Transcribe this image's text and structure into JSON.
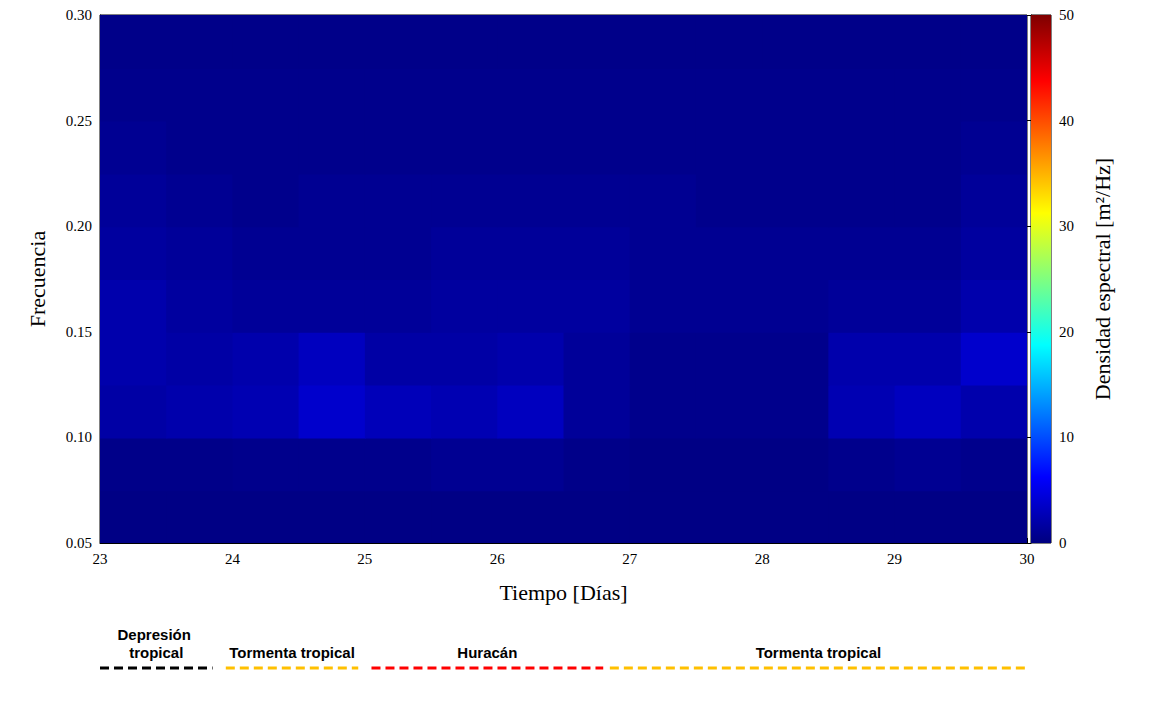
{
  "chart_data": {
    "type": "heatmap",
    "xlabel": "Tiempo [Días]",
    "ylabel": "Frecuencia",
    "xlim": [
      23,
      30
    ],
    "xticks": [
      23,
      24,
      25,
      26,
      27,
      28,
      29,
      30
    ],
    "ylim": [
      0.05,
      0.3
    ],
    "yticks": [
      0.05,
      {
        "value": 0.1,
        "label": "0.10"
      },
      0.15,
      {
        "value": 0.2,
        "label": "0.20"
      },
      0.25,
      {
        "value": 0.3,
        "label": "0.30"
      }
    ],
    "grid": false,
    "x": [
      23.25,
      23.75,
      24.25,
      24.75,
      25.25,
      25.75,
      26.25,
      26.75,
      27.25,
      27.75,
      28.25,
      28.75,
      29.25,
      29.75
    ],
    "y": [
      0.0625,
      0.0875,
      0.1125,
      0.1375,
      0.1625,
      0.1875,
      0.2125,
      0.2375,
      0.2625,
      0.2875
    ],
    "z": [
      [
        0.5,
        0.5,
        0.5,
        0.5,
        0.5,
        0.5,
        0.5,
        0.5,
        0.5,
        0.5,
        0.5,
        0.5,
        0.5,
        0.5
      ],
      [
        0.8,
        0.8,
        1,
        1,
        1,
        1.5,
        1.5,
        0.8,
        0.5,
        0.5,
        0.5,
        1,
        1.5,
        1
      ],
      [
        3,
        3.5,
        4,
        6,
        4.5,
        4,
        5,
        2,
        1,
        1,
        1,
        4,
        5,
        3.5
      ],
      [
        3.5,
        3,
        3.5,
        5,
        3,
        3,
        3.5,
        2,
        1,
        1,
        1,
        3.5,
        3.5,
        6
      ],
      [
        3.5,
        2.5,
        2,
        2,
        2,
        2.5,
        2.5,
        2.5,
        1.5,
        1.5,
        1.5,
        2,
        2,
        3.5
      ],
      [
        2.5,
        2,
        1.5,
        1.5,
        1.5,
        2,
        2,
        2,
        1.5,
        1.5,
        1.5,
        1.5,
        1.5,
        2.5
      ],
      [
        2,
        1.5,
        1,
        1.5,
        1.5,
        1.5,
        1.5,
        1.5,
        1.5,
        1,
        1,
        1,
        1,
        2
      ],
      [
        1.5,
        1,
        1,
        1,
        1,
        1,
        1,
        1,
        1,
        1,
        1,
        1,
        1,
        1.5
      ],
      [
        1,
        1,
        1,
        1,
        1,
        1,
        1,
        1,
        1,
        1,
        1,
        1,
        1,
        1
      ],
      [
        0.8,
        0.8,
        0.8,
        0.8,
        0.8,
        0.8,
        0.8,
        0.8,
        0.8,
        0.8,
        0.8,
        0.8,
        0.8,
        0.8
      ]
    ],
    "colorbar": {
      "label": "Densidad espectral [m²/Hz]",
      "lim": [
        0,
        50
      ],
      "ticks": [
        0,
        10,
        20,
        30,
        40,
        50
      ]
    },
    "annotations": [
      {
        "text": "Depresión tropical",
        "x": [
          23.0,
          23.85
        ],
        "color": "#000000",
        "line_style": "dashed"
      },
      {
        "text": "Tormenta tropical",
        "x": [
          23.95,
          24.95
        ],
        "color": "#ffc000",
        "line_style": "dashed"
      },
      {
        "text": "Huracán",
        "x": [
          25.05,
          26.8
        ],
        "color": "#ff0000",
        "line_style": "dashed"
      },
      {
        "text": "Tormenta tropical",
        "x": [
          26.85,
          30.0
        ],
        "color": "#ffc000",
        "line_style": "dashed"
      }
    ]
  }
}
